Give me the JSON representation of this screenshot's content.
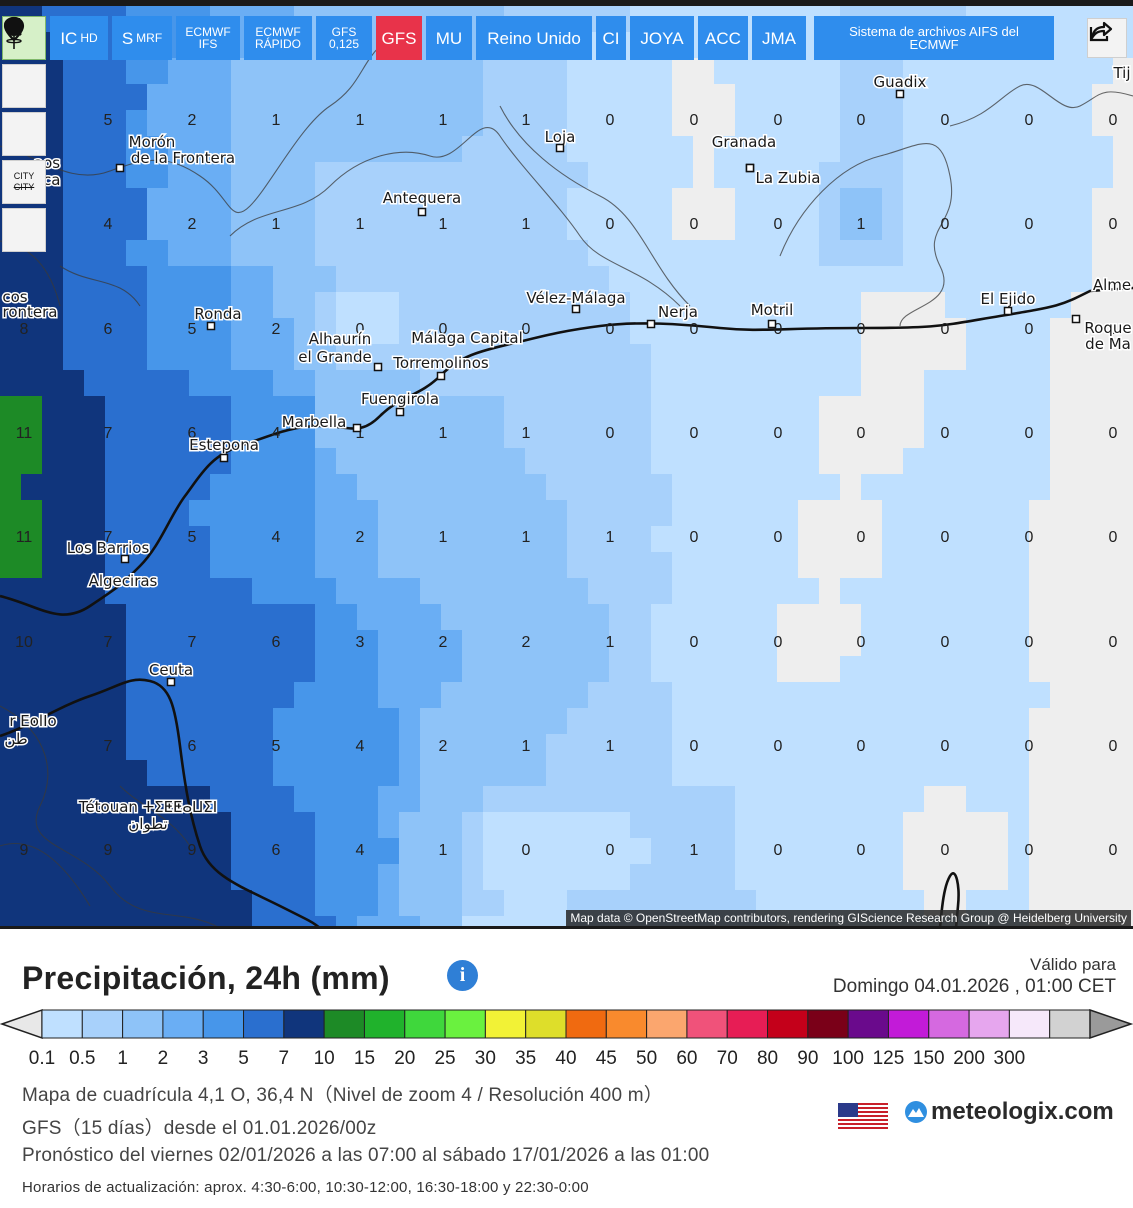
{
  "toolbar": {
    "reload_icon": "reload-icon",
    "models": [
      {
        "label": "IC",
        "sub": "HD",
        "small": false,
        "active": false
      },
      {
        "label": "S",
        "sub": "MRF",
        "small": false,
        "active": false
      },
      {
        "label": "ECMWF IFS",
        "sub": "",
        "small": true,
        "active": false
      },
      {
        "label": "ECMWF RÁPIDO",
        "sub": "",
        "small": true,
        "active": false
      },
      {
        "label": "GFS 0,125",
        "sub": "",
        "small": true,
        "active": false
      },
      {
        "label": "GFS",
        "sub": "",
        "small": false,
        "active": true
      },
      {
        "label": "MU",
        "sub": "",
        "small": false,
        "active": false
      },
      {
        "label": "Reino Unido",
        "sub": "",
        "small": false,
        "active": false
      },
      {
        "label": "CI",
        "sub": "",
        "small": false,
        "active": false
      },
      {
        "label": "JOYA",
        "sub": "",
        "small": false,
        "active": false
      },
      {
        "label": "ACC",
        "sub": "",
        "small": false,
        "active": false
      },
      {
        "label": "JMA",
        "sub": "",
        "small": false,
        "active": false
      }
    ],
    "aifs_label": "Sistema de archivos AIFS del ECMWF",
    "city_label_1": "CITY",
    "city_label_2": "CITY"
  },
  "map": {
    "attribution": "Map data © OpenStreetMap contributors, rendering GIScience Research Group @ Heidelberg University",
    "grid_values": [
      [
        "",
        "5",
        "2",
        "1",
        "1",
        "1",
        "1",
        "0",
        "0",
        "0",
        "0",
        "0",
        "0",
        "0"
      ],
      [
        "",
        "4",
        "2",
        "1",
        "1",
        "1",
        "1",
        "0",
        "0",
        "0",
        "1",
        "0",
        "0",
        "0"
      ],
      [
        "8",
        "6",
        "5",
        "2",
        "0",
        "0",
        "0",
        "0",
        "0",
        "0",
        "0",
        "0",
        "0",
        "0"
      ],
      [
        "11",
        "7",
        "6",
        "4",
        "1",
        "1",
        "1",
        "0",
        "0",
        "0",
        "0",
        "0",
        "0",
        "0"
      ],
      [
        "11",
        "7",
        "5",
        "4",
        "2",
        "1",
        "1",
        "1",
        "0",
        "0",
        "0",
        "0",
        "0",
        "0"
      ],
      [
        "10",
        "7",
        "7",
        "6",
        "3",
        "2",
        "2",
        "1",
        "0",
        "0",
        "0",
        "0",
        "0",
        "0"
      ],
      [
        "",
        "7",
        "6",
        "5",
        "4",
        "2",
        "1",
        "1",
        "0",
        "0",
        "0",
        "0",
        "0",
        "0"
      ],
      [
        "9",
        "9",
        "9",
        "6",
        "4",
        "1",
        "0",
        "0",
        "1",
        "0",
        "0",
        "0",
        "0",
        "0"
      ]
    ],
    "places": [
      {
        "name": "Guadix",
        "dot": true
      },
      {
        "name": "Morón",
        "dot": false
      },
      {
        "name": "de la Frontera",
        "dot": true
      },
      {
        "name": "Loja",
        "dot": true
      },
      {
        "name": "Granada",
        "dot": true
      },
      {
        "name": "La Zubia",
        "dot": true
      },
      {
        "name": "Antequera",
        "dot": true
      },
      {
        "name": "Vélez-Málaga",
        "dot": true
      },
      {
        "name": "Nerja",
        "dot": true
      },
      {
        "name": "Motril",
        "dot": true
      },
      {
        "name": "El Ejido",
        "dot": true
      },
      {
        "name": "Alme",
        "dot": false
      },
      {
        "name": "Roque",
        "dot": true
      },
      {
        "name": "de Ma",
        "dot": false
      },
      {
        "name": "Ronda",
        "dot": true
      },
      {
        "name": "Alhaurín",
        "dot": false
      },
      {
        "name": "el Grande",
        "dot": true
      },
      {
        "name": "Málaga Capital",
        "dot": false
      },
      {
        "name": "Torremolinos",
        "dot": true
      },
      {
        "name": "Fuengirola",
        "dot": true
      },
      {
        "name": "Marbella",
        "dot": true
      },
      {
        "name": "Estepona",
        "dot": true
      },
      {
        "name": "Los Barrios",
        "dot": true
      },
      {
        "name": "Algeciras",
        "dot": false
      },
      {
        "name": "Ceuta",
        "dot": true
      },
      {
        "name": "Tétouan ⵜⵉⵟⵟⴰⵡⵉⵏ",
        "dot": false
      },
      {
        "name": "تطوان",
        "dot": false
      },
      {
        "name": "cos",
        "dot": false
      },
      {
        "name": "rontera",
        "dot": false
      },
      {
        "name": "r EolIo",
        "dot": false
      },
      {
        "name": "طن",
        "dot": false
      },
      {
        "name": "aos",
        "dot": false
      },
      {
        "name": "nca",
        "dot": false
      },
      {
        "name": "Tij",
        "dot": false
      }
    ]
  },
  "legend": {
    "title": "Precipitación, 24h (mm)",
    "info_icon": "info-icon",
    "valid_label": "Válido para",
    "valid_date": "Domingo 04.01.2026 , 01:00 CET",
    "scale_labels": [
      "0.1",
      "0.5",
      "1",
      "2",
      "3",
      "5",
      "7",
      "10",
      "15",
      "20",
      "25",
      "30",
      "35",
      "40",
      "45",
      "50",
      "60",
      "70",
      "80",
      "90",
      "100",
      "125",
      "150",
      "200",
      "300"
    ],
    "scale_colors": [
      "#bfe0ff",
      "#a8d1fb",
      "#8ec3f8",
      "#6aaef4",
      "#4796ea",
      "#2a6fcf",
      "#10357c",
      "#1d8a26",
      "#20b22c",
      "#3fd73c",
      "#6af13f",
      "#f2f236",
      "#dede2a",
      "#f06a10",
      "#f98a2d",
      "#fba66e",
      "#f0527a",
      "#e71d55",
      "#c4001a",
      "#7a0018",
      "#6a0a8c",
      "#c21bd8",
      "#d569e0",
      "#e6a6ee",
      "#f6e8fa",
      "#d2d2d2"
    ],
    "grid_info": "Mapa de cuadrícula 4,1 O, 36,4 N（Nivel de zoom 4 / Resolución 400 m）",
    "model_info": "GFS（15 días）desde el 01.01.2026/00z",
    "forecast_info": "Pronóstico del viernes 02/01/2026 a las 07:00 al sábado 17/01/2026 a las 01:00",
    "update_info": "Horarios de actualización: aprox. 4:30-6:00, 10:30-12:00, 16:30-18:00 y 22:30-0:00",
    "brand": "meteologix.com",
    "brand_icon": "meteologix-logo-icon",
    "flag_icon": "us-flag-icon"
  }
}
